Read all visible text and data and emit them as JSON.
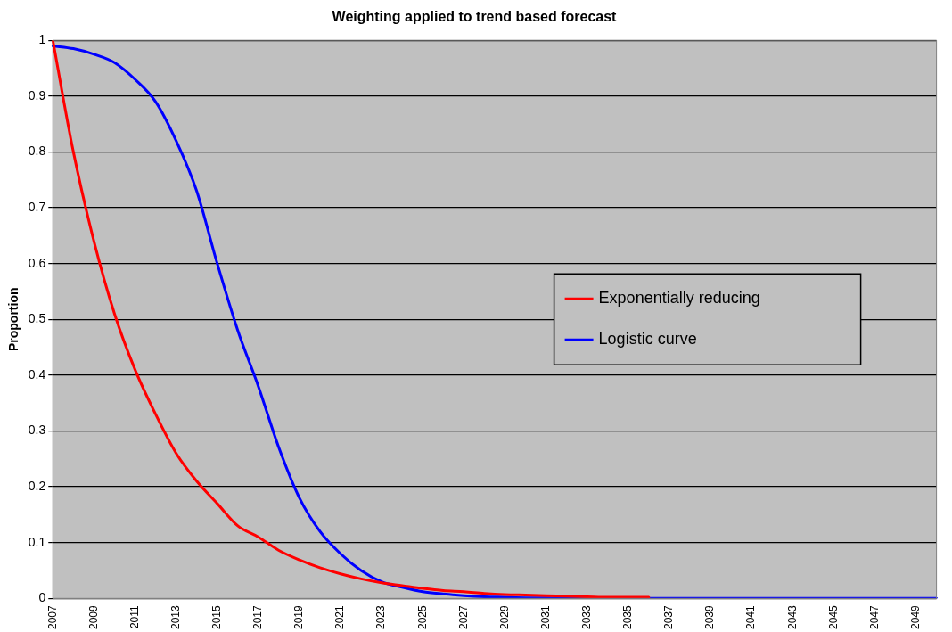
{
  "chart_data": {
    "type": "line",
    "title": "Weighting applied to trend based forecast",
    "ylabel": "Proportion",
    "categories": [
      "2007",
      null,
      "2009",
      null,
      "2011",
      null,
      "2013",
      null,
      "2015",
      null,
      "2017",
      null,
      "2019",
      null,
      "2021",
      null,
      "2023",
      null,
      "2025",
      null,
      "2027",
      null,
      "2029",
      null,
      "2031",
      null,
      "2033",
      null,
      "2035",
      null,
      "2037",
      null,
      "2039",
      null,
      "2041",
      null,
      "2043",
      null,
      "2045",
      null,
      "2047",
      null,
      "2049",
      null
    ],
    "series": [
      {
        "name": "Exponentially reducing",
        "color": "#ff0000",
        "values": [
          1,
          0.8,
          0.64,
          0.51,
          0.41,
          0.33,
          0.26,
          0.21,
          0.17,
          0.13,
          0.11,
          0.086,
          0.069,
          0.055,
          0.044,
          0.035,
          0.028,
          0.023,
          0.018,
          0.014,
          0.012,
          0.009,
          0.007,
          0.006,
          0.005,
          0.004,
          0.003,
          0.002,
          0.002,
          0.002,
          null,
          null,
          null,
          null,
          null,
          null,
          null,
          null,
          null,
          null,
          null,
          null,
          null,
          null
        ]
      },
      {
        "name": "Logistic curve",
        "color": "#0000ff",
        "values": [
          0.99,
          0.985,
          0.975,
          0.96,
          0.93,
          0.89,
          0.82,
          0.73,
          0.6,
          0.48,
          0.38,
          0.27,
          0.18,
          0.12,
          0.08,
          0.05,
          0.03,
          0.02,
          0.012,
          0.008,
          0.005,
          0.003,
          0.002,
          0.001,
          0.001,
          0,
          0,
          0,
          0,
          0,
          0,
          0,
          0,
          0,
          0,
          0,
          0,
          0,
          0,
          0,
          0,
          0,
          0,
          0
        ]
      }
    ],
    "ylim": [
      0,
      1
    ],
    "yticks": [
      0,
      0.1,
      0.2,
      0.3,
      0.4,
      0.5,
      0.6,
      0.7,
      0.8,
      0.9,
      1
    ],
    "grid": "y",
    "legend": "right",
    "marker": "none",
    "line_style": "solid"
  }
}
